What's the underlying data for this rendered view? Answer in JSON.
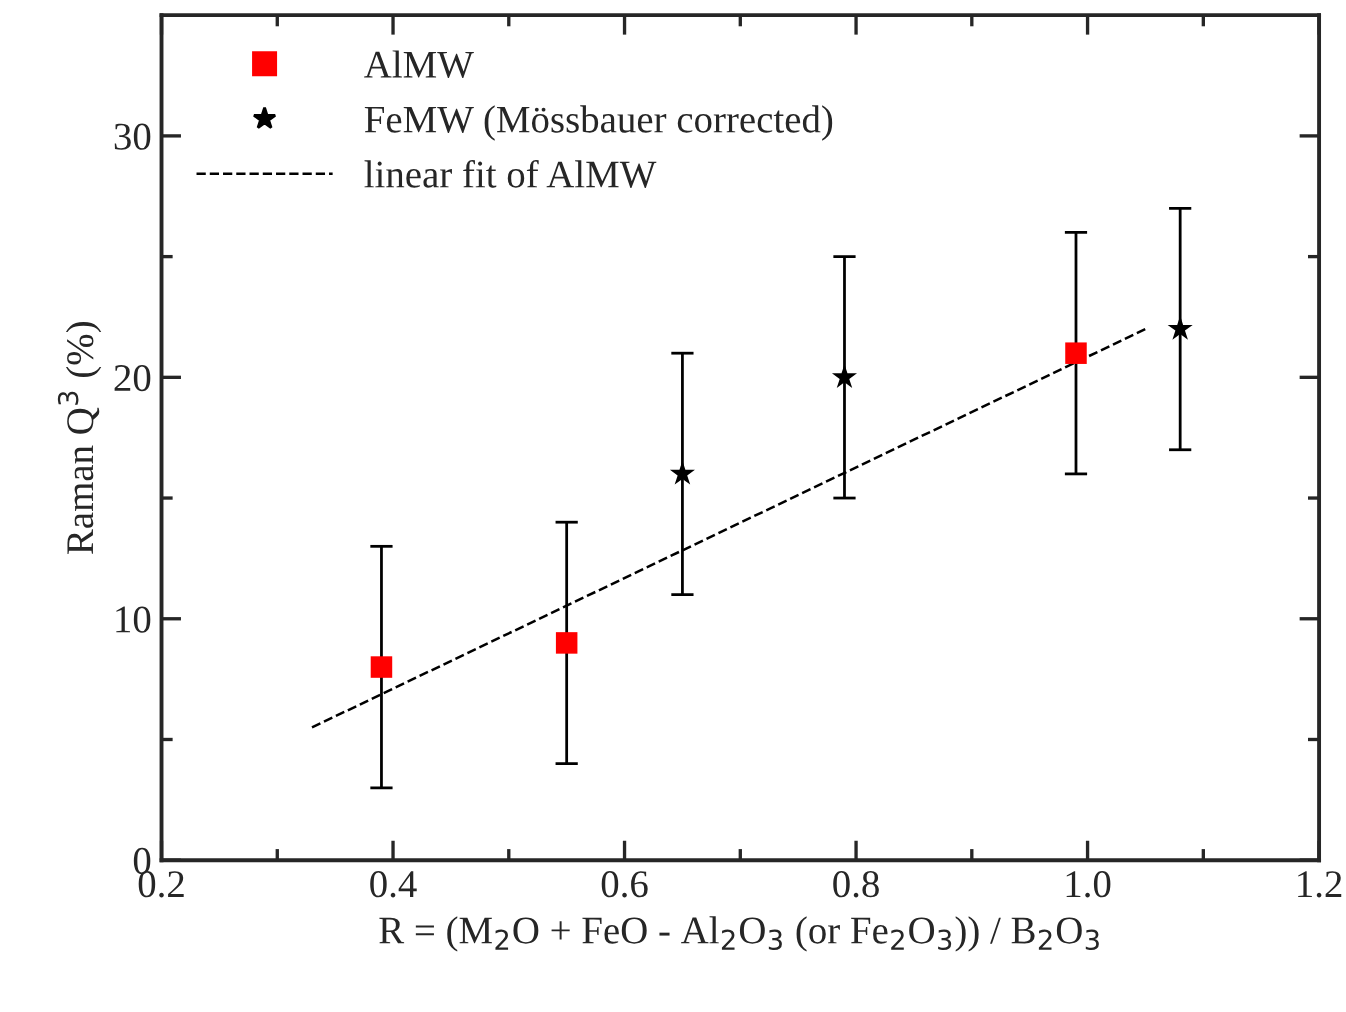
{
  "chart_data": {
    "type": "scatter",
    "xlabel": "R = (M$_{2}$O + FeO - Al$_{2}$O$_{3}$ (or Fe$_{2}$O$_{3}$)) / B$_{2}$O$_{3}$",
    "ylabel": "Raman Q$^{3}$ (%)",
    "series": [
      {
        "name": "AlMW",
        "color": "#ff0000",
        "marker": "square",
        "x": [
          0.39,
          0.55,
          0.99
        ],
        "values": [
          8,
          9,
          21
        ],
        "errors": [
          5,
          5,
          5
        ]
      },
      {
        "name": "FeMW (Mössbauer corrected)",
        "color": "#000000",
        "marker": "star",
        "x": [
          0.65,
          0.79,
          1.08
        ],
        "values": [
          16,
          20,
          22
        ],
        "errors": [
          5,
          5,
          5
        ]
      },
      {
        "name": "linear fit of AlMW",
        "type": "line",
        "color": "#000000",
        "line_style": "dashed",
        "marker": "none",
        "x": [
          0.33,
          1.05
        ],
        "values": [
          5.5,
          22
        ]
      }
    ],
    "xlim": [
      0.2,
      1.2
    ],
    "ylim": [
      0,
      35
    ],
    "xticks": [
      0.2,
      {
        "value": 0.3,
        "label": null
      },
      0.4,
      {
        "value": 0.5,
        "label": null
      },
      0.6,
      {
        "value": 0.7,
        "label": null
      },
      0.8,
      {
        "value": 0.9,
        "label": null
      },
      {
        "value": 1.0,
        "label": "1.0"
      },
      {
        "value": 1.1,
        "label": null
      },
      1.2
    ],
    "yticks": [
      0,
      {
        "value": 5,
        "label": null
      },
      10,
      {
        "value": 15,
        "label": null
      },
      20,
      {
        "value": 25,
        "label": null
      },
      30
    ],
    "legend": "top left",
    "grid": false
  }
}
